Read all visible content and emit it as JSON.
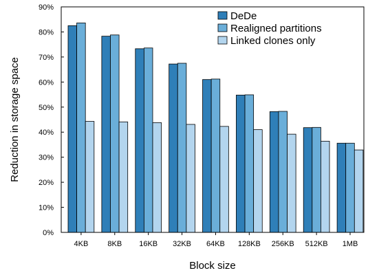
{
  "chart_data": {
    "type": "bar",
    "xlabel": "Block size",
    "ylabel": "Reduction in storage space",
    "categories": [
      "4KB",
      "8KB",
      "16KB",
      "32KB",
      "64KB",
      "128KB",
      "256KB",
      "512KB",
      "1MB"
    ],
    "series": [
      {
        "name": "DeDe",
        "color": "#2f7fb8",
        "values": [
          82.5,
          78.3,
          73.3,
          67.2,
          61.0,
          54.8,
          48.2,
          41.8,
          35.6
        ]
      },
      {
        "name": "Realigned partitions",
        "color": "#6aaed9",
        "values": [
          83.6,
          78.8,
          73.6,
          67.5,
          61.2,
          54.9,
          48.3,
          41.9,
          35.6
        ]
      },
      {
        "name": "Linked clones only",
        "color": "#b3d5ee",
        "values": [
          44.3,
          44.1,
          43.8,
          43.1,
          42.3,
          41.0,
          39.2,
          36.4,
          32.9
        ]
      }
    ],
    "ylim": [
      0,
      90
    ],
    "yticks": [
      "0%",
      "10%",
      "20%",
      "30%",
      "40%",
      "50%",
      "60%",
      "70%",
      "80%",
      "90%"
    ],
    "grid": false,
    "legend_position": "top-right"
  }
}
